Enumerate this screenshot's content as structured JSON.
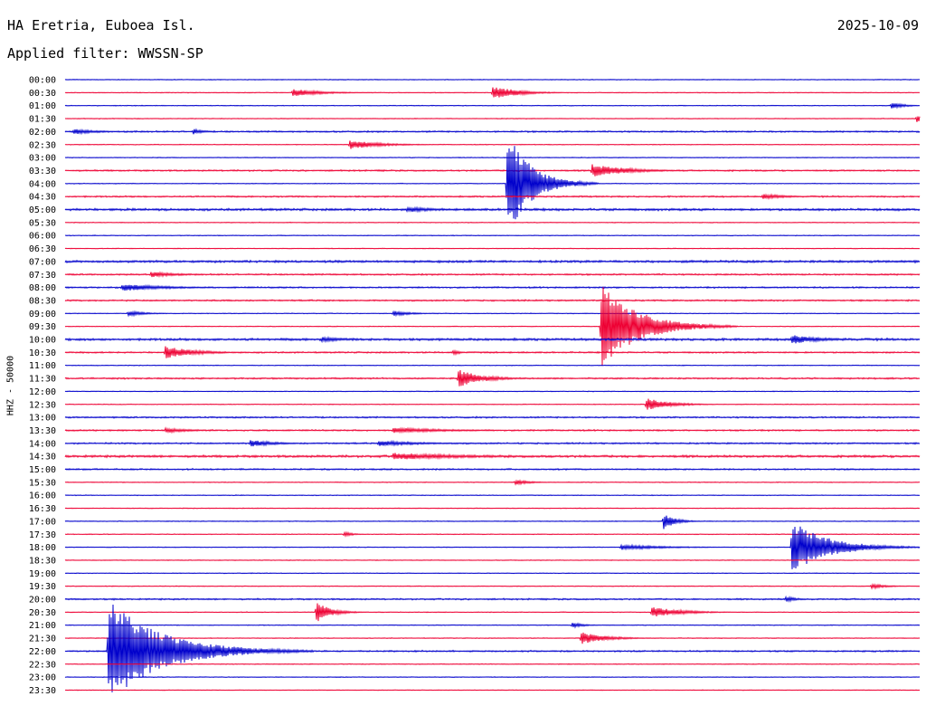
{
  "header": {
    "station": "HA Eretria, Euboea Isl.",
    "date": "2025-10-09",
    "filter": "Applied filter: WWSSN-SP"
  },
  "chart_data": {
    "type": "line",
    "title": "HA Eretria, Euboea Isl.",
    "date": "2025-10-09",
    "ylabel": "HHZ - 50000",
    "row_labels": [
      "00:00",
      "00:30",
      "01:00",
      "01:30",
      "02:00",
      "02:30",
      "03:00",
      "03:30",
      "04:00",
      "04:30",
      "05:00",
      "05:30",
      "06:00",
      "06:30",
      "07:00",
      "07:30",
      "08:00",
      "08:30",
      "09:00",
      "09:30",
      "10:00",
      "10:30",
      "11:00",
      "11:30",
      "12:00",
      "12:30",
      "13:00",
      "13:30",
      "14:00",
      "14:30",
      "15:00",
      "15:30",
      "16:00",
      "16:30",
      "17:00",
      "17:30",
      "18:00",
      "18:30",
      "19:00",
      "19:30",
      "20:00",
      "20:30",
      "21:00",
      "21:30",
      "22:00",
      "22:30",
      "23:00",
      "23:30"
    ],
    "row_minutes": 30,
    "colors": [
      "#0000cc",
      "#ee0033"
    ],
    "noise_level": [
      1,
      1,
      1,
      1,
      2,
      1,
      1,
      2,
      1,
      2,
      3,
      1,
      1,
      1,
      3,
      2,
      2,
      2,
      1,
      1,
      3,
      2,
      1,
      2,
      1,
      1,
      2,
      2,
      2,
      3,
      2,
      1,
      1,
      1,
      1,
      1,
      1,
      1,
      1,
      1,
      2,
      1,
      1,
      1,
      2,
      1,
      1,
      1
    ],
    "events": [
      {
        "row": 1,
        "minute": 8.0,
        "amp": 4,
        "dur": 1.0
      },
      {
        "row": 1,
        "minute": 15.0,
        "amp": 8,
        "dur": 0.8
      },
      {
        "row": 2,
        "minute": 29.0,
        "amp": 4,
        "dur": 0.4
      },
      {
        "row": 3,
        "minute": 29.9,
        "amp": 4,
        "dur": 0.3
      },
      {
        "row": 4,
        "minute": 0.3,
        "amp": 3,
        "dur": 0.8
      },
      {
        "row": 4,
        "minute": 4.5,
        "amp": 3,
        "dur": 0.4
      },
      {
        "row": 5,
        "minute": 10.0,
        "amp": 5,
        "dur": 1.0
      },
      {
        "row": 7,
        "minute": 18.5,
        "amp": 7,
        "dur": 1.2
      },
      {
        "row": 8,
        "minute": 15.5,
        "amp": 60,
        "dur": 0.8
      },
      {
        "row": 9,
        "minute": 24.5,
        "amp": 3,
        "dur": 0.8
      },
      {
        "row": 10,
        "minute": 12.0,
        "amp": 3,
        "dur": 1.0
      },
      {
        "row": 15,
        "minute": 3.0,
        "amp": 3,
        "dur": 1.0
      },
      {
        "row": 16,
        "minute": 2.0,
        "amp": 4,
        "dur": 1.5
      },
      {
        "row": 18,
        "minute": 2.2,
        "amp": 3,
        "dur": 0.6
      },
      {
        "row": 18,
        "minute": 11.5,
        "amp": 3,
        "dur": 0.6
      },
      {
        "row": 19,
        "minute": 18.8,
        "amp": 50,
        "dur": 1.2
      },
      {
        "row": 20,
        "minute": 9.0,
        "amp": 3,
        "dur": 0.8
      },
      {
        "row": 20,
        "minute": 25.5,
        "amp": 5,
        "dur": 1.0
      },
      {
        "row": 21,
        "minute": 3.5,
        "amp": 7,
        "dur": 1.0
      },
      {
        "row": 21,
        "minute": 13.6,
        "amp": 3,
        "dur": 0.3
      },
      {
        "row": 23,
        "minute": 13.8,
        "amp": 10,
        "dur": 0.8
      },
      {
        "row": 25,
        "minute": 20.4,
        "amp": 7,
        "dur": 0.8
      },
      {
        "row": 27,
        "minute": 3.5,
        "amp": 3,
        "dur": 0.8
      },
      {
        "row": 27,
        "minute": 11.5,
        "amp": 3,
        "dur": 2.0
      },
      {
        "row": 28,
        "minute": 6.5,
        "amp": 4,
        "dur": 0.8
      },
      {
        "row": 28,
        "minute": 11.0,
        "amp": 3,
        "dur": 1.5
      },
      {
        "row": 29,
        "minute": 11.5,
        "amp": 4,
        "dur": 2.5
      },
      {
        "row": 31,
        "minute": 15.8,
        "amp": 3,
        "dur": 0.5
      },
      {
        "row": 34,
        "minute": 21.0,
        "amp": 9,
        "dur": 0.4
      },
      {
        "row": 35,
        "minute": 9.8,
        "amp": 3,
        "dur": 0.3
      },
      {
        "row": 36,
        "minute": 19.5,
        "amp": 3,
        "dur": 1.5
      },
      {
        "row": 36,
        "minute": 25.5,
        "amp": 30,
        "dur": 1.2
      },
      {
        "row": 39,
        "minute": 28.3,
        "amp": 3,
        "dur": 0.5
      },
      {
        "row": 40,
        "minute": 25.3,
        "amp": 3,
        "dur": 0.4
      },
      {
        "row": 41,
        "minute": 8.8,
        "amp": 12,
        "dur": 0.5
      },
      {
        "row": 41,
        "minute": 20.6,
        "amp": 6,
        "dur": 1.0
      },
      {
        "row": 42,
        "minute": 17.8,
        "amp": 3,
        "dur": 0.4
      },
      {
        "row": 43,
        "minute": 18.1,
        "amp": 7,
        "dur": 0.8
      },
      {
        "row": 44,
        "minute": 1.5,
        "amp": 58,
        "dur": 1.8
      }
    ]
  }
}
